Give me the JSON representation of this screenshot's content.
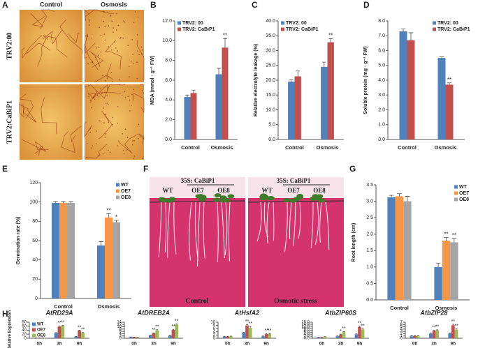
{
  "panel_labels": [
    "A",
    "B",
    "C",
    "D",
    "E",
    "F",
    "G",
    "H"
  ],
  "panel_a": {
    "columns": [
      "Control",
      "Osmosis"
    ],
    "rows": [
      "TRV2:00",
      "TRV2:CaBiP1"
    ]
  },
  "panel_f": {
    "groups": [
      "35S: CaBiP1",
      "35S: CaBiP1"
    ],
    "lines_control": [
      "WT",
      "OE7",
      "OE8"
    ],
    "lines_stress": [
      "WT",
      "OE7",
      "OE8"
    ],
    "conditions": [
      "Control",
      "Osmotic stress"
    ]
  },
  "chart_data": [
    {
      "type": "bar",
      "ylabel": "MDA (mmol · g⁻¹ FW)",
      "categories": [
        "Control",
        "Osmosis"
      ],
      "legend": "top-left",
      "series": [
        {
          "name": "TRV2: 00",
          "color": "#4f81bd",
          "values": [
            4.3,
            6.6
          ],
          "errors": [
            0.2,
            0.6
          ],
          "significance": [
            null,
            null
          ]
        },
        {
          "name": "TRV2: CaBiP1",
          "color": "#c0504d",
          "values": [
            4.7,
            9.3
          ],
          "errors": [
            0.3,
            0.9
          ],
          "significance": [
            null,
            "**"
          ]
        }
      ],
      "ylim": [
        0,
        12
      ],
      "yticks": [
        {
          "value": 0,
          "label": "0.0"
        },
        {
          "value": 2,
          "label": "2.0"
        },
        {
          "value": 4,
          "label": "4.0"
        },
        {
          "value": 6,
          "label": "6.0"
        },
        {
          "value": 8,
          "label": "8.0"
        },
        {
          "value": 10,
          "label": "10.0"
        },
        {
          "value": 12,
          "label": "12.0"
        }
      ]
    },
    {
      "type": "bar",
      "ylabel": "Relative electrolyte leakage (%)",
      "categories": [
        "Control",
        "Osmosis"
      ],
      "legend": "top-left",
      "series": [
        {
          "name": "TRV2: 00",
          "color": "#4f81bd",
          "values": [
            19.5,
            24.5
          ],
          "errors": [
            0.6,
            1.6
          ],
          "significance": [
            null,
            null
          ]
        },
        {
          "name": "TRV2: CaBiP1",
          "color": "#c0504d",
          "values": [
            21.3,
            32.8
          ],
          "errors": [
            1.8,
            1.2
          ],
          "significance": [
            null,
            "**"
          ]
        }
      ],
      "ylim": [
        0,
        40
      ],
      "yticks": [
        {
          "value": 0,
          "label": "0.0"
        },
        {
          "value": 5,
          "label": "5.0"
        },
        {
          "value": 10,
          "label": "10.0"
        },
        {
          "value": 15,
          "label": "15.0"
        },
        {
          "value": 20,
          "label": "20.0"
        },
        {
          "value": 25,
          "label": "25.0"
        },
        {
          "value": 30,
          "label": "30.0"
        },
        {
          "value": 35,
          "label": "35.0"
        },
        {
          "value": 40,
          "label": "40.0"
        }
      ]
    },
    {
      "type": "bar",
      "ylabel": "Soluble protein (mg · g⁻¹ FW)",
      "categories": [
        "Control",
        "Osmosis"
      ],
      "legend": "top-right",
      "series": [
        {
          "name": "TRV2: 00",
          "color": "#4f81bd",
          "values": [
            7.3,
            5.5
          ],
          "errors": [
            0.15,
            0.08
          ],
          "significance": [
            null,
            null
          ]
        },
        {
          "name": "TRV2: CaBiP1",
          "color": "#c0504d",
          "values": [
            6.7,
            3.7
          ],
          "errors": [
            0.5,
            0.12
          ],
          "significance": [
            null,
            "**"
          ]
        }
      ],
      "ylim": [
        0,
        8
      ],
      "yticks": [
        {
          "value": 0,
          "label": "0.0"
        },
        {
          "value": 1,
          "label": "1.0"
        },
        {
          "value": 2,
          "label": "2.0"
        },
        {
          "value": 3,
          "label": "3.0"
        },
        {
          "value": 4,
          "label": "4.0"
        },
        {
          "value": 5,
          "label": "5.0"
        },
        {
          "value": 6,
          "label": "6.0"
        },
        {
          "value": 7,
          "label": "7.0"
        },
        {
          "value": 8,
          "label": "8.0"
        }
      ]
    },
    {
      "type": "bar",
      "ylabel": "Germination rate (%)",
      "categories": [
        "Control",
        "Osmosis"
      ],
      "legend": "top-right",
      "series": [
        {
          "name": "WT",
          "color": "#4f81bd",
          "values": [
            99,
            55
          ],
          "errors": [
            1.5,
            4
          ],
          "significance": [
            null,
            null
          ]
        },
        {
          "name": "OE7",
          "color": "#f79646",
          "values": [
            99,
            84
          ],
          "errors": [
            1.5,
            4
          ],
          "significance": [
            null,
            "**"
          ]
        },
        {
          "name": "OE8",
          "color": "#a5a5a5",
          "values": [
            99,
            79
          ],
          "errors": [
            1.5,
            2
          ],
          "significance": [
            null,
            "*"
          ]
        }
      ],
      "ylim": [
        0,
        120
      ],
      "yticks": [
        0,
        20,
        40,
        60,
        80,
        100,
        120
      ]
    },
    {
      "type": "bar",
      "ylabel": "Root length (cm)",
      "categories": [
        "Control",
        "Osmosis"
      ],
      "legend": "top-right",
      "series": [
        {
          "name": "WT",
          "color": "#4f81bd",
          "values": [
            3.12,
            1.0
          ],
          "errors": [
            0.06,
            0.12
          ],
          "significance": [
            null,
            null
          ]
        },
        {
          "name": "OE7",
          "color": "#f79646",
          "values": [
            3.15,
            1.8
          ],
          "errors": [
            0.08,
            0.1
          ],
          "significance": [
            null,
            "**"
          ]
        },
        {
          "name": "OE8",
          "color": "#a5a5a5",
          "values": [
            3.0,
            1.75
          ],
          "errors": [
            0.15,
            0.12
          ],
          "significance": [
            null,
            "**"
          ]
        }
      ],
      "ylim": [
        0,
        3.5
      ],
      "yticks": [
        {
          "value": 0,
          "label": "0.0"
        },
        0.5,
        {
          "value": 1,
          "label": "1.0"
        },
        1.5,
        {
          "value": 2,
          "label": "2.0"
        },
        2.5,
        {
          "value": 3,
          "label": "3.0"
        },
        3.5
      ]
    },
    {
      "type": "bar",
      "title": "AtRD29A",
      "ylabel": "Relative Expression",
      "categories": [
        "0h",
        "3h",
        "9h"
      ],
      "legend": "top-left",
      "series": [
        {
          "name": "WT",
          "color": "#4f81bd",
          "values": [
            1,
            27,
            8
          ],
          "errors": [
            0.2,
            1.5,
            1
          ],
          "significance": [
            null,
            null,
            null
          ]
        },
        {
          "name": "OE7",
          "color": "#c0504d",
          "values": [
            1,
            58,
            38
          ],
          "errors": [
            0.2,
            4,
            2
          ],
          "significance": [
            null,
            "**",
            "**"
          ]
        },
        {
          "name": "OE8",
          "color": "#9bbb59",
          "values": [
            1,
            62,
            27
          ],
          "errors": [
            0.2,
            3,
            2
          ],
          "significance": [
            null,
            "**",
            "**"
          ]
        }
      ],
      "ylim": [
        0,
        80
      ],
      "yticks": [
        0,
        20,
        40,
        60,
        80
      ]
    },
    {
      "type": "bar",
      "title": "AtDREB2A",
      "categories": [
        "0h",
        "3h",
        "9h"
      ],
      "series": [
        {
          "color": "#4f81bd",
          "values": [
            1,
            2.5,
            2.3
          ],
          "errors": [
            0.1,
            0.3,
            0.3
          ],
          "significance": [
            null,
            null,
            null
          ]
        },
        {
          "color": "#c0504d",
          "values": [
            0.9,
            4.3,
            7.3
          ],
          "errors": [
            0.1,
            0.4,
            0.5
          ],
          "significance": [
            null,
            "**",
            "**"
          ]
        },
        {
          "color": "#9bbb59",
          "values": [
            0.8,
            7,
            12
          ],
          "errors": [
            0.1,
            0.5,
            0.5
          ],
          "significance": [
            null,
            "**",
            "**"
          ]
        }
      ],
      "ylim": [
        0,
        14
      ],
      "yticks": [
        0,
        2,
        4,
        6,
        8,
        10,
        12,
        14
      ]
    },
    {
      "type": "bar",
      "title": "AtHsfA2",
      "categories": [
        "0h",
        "3h",
        "9h"
      ],
      "series": [
        {
          "color": "#4f81bd",
          "values": [
            1,
            3.5,
            1.2
          ],
          "errors": [
            0.2,
            0.3,
            0.2
          ],
          "significance": [
            null,
            null,
            null
          ]
        },
        {
          "color": "#c0504d",
          "values": [
            1,
            8,
            2.6
          ],
          "errors": [
            0.2,
            0.6,
            0.3
          ],
          "significance": [
            null,
            "**",
            "**"
          ]
        },
        {
          "color": "#9bbb59",
          "values": [
            1.1,
            6.5,
            2.7
          ],
          "errors": [
            0.2,
            0.8,
            0.3
          ],
          "significance": [
            null,
            "**",
            "**"
          ]
        }
      ],
      "ylim": [
        0,
        10
      ],
      "yticks": [
        0,
        2,
        4,
        6,
        8,
        10
      ]
    },
    {
      "type": "bar",
      "title": "AtbZIP60S",
      "categories": [
        "0h",
        "3h",
        "9h"
      ],
      "series": [
        {
          "color": "#4f81bd",
          "values": [
            1,
            2,
            4
          ],
          "errors": [
            0.1,
            0.3,
            0.4
          ],
          "significance": [
            null,
            null,
            null
          ]
        },
        {
          "color": "#c0504d",
          "values": [
            0.8,
            3.7,
            11.3
          ],
          "errors": [
            0.1,
            0.4,
            0.8
          ],
          "significance": [
            null,
            "*",
            "**"
          ]
        },
        {
          "color": "#9bbb59",
          "values": [
            1.5,
            6.4,
            8.8
          ],
          "errors": [
            0.1,
            0.4,
            0.5
          ],
          "significance": [
            null,
            "**",
            "**"
          ]
        }
      ],
      "ylim": [
        0,
        16
      ],
      "yticks": [
        {
          "value": 0,
          "label": "0.0"
        },
        {
          "value": 2,
          "label": "2.0"
        },
        {
          "value": 4,
          "label": "4.0"
        },
        {
          "value": 6,
          "label": "6.0"
        },
        {
          "value": 8,
          "label": "8.0"
        },
        {
          "value": 10,
          "label": "10.0"
        },
        {
          "value": 12,
          "label": "12.0"
        },
        {
          "value": 14,
          "label": "14.0"
        },
        {
          "value": 16,
          "label": "16.0"
        }
      ]
    },
    {
      "type": "bar",
      "title": "AtbZIP28",
      "categories": [
        "0h",
        "3h",
        "9h"
      ],
      "series": [
        {
          "color": "#4f81bd",
          "values": [
            1,
            2,
            2.1
          ],
          "errors": [
            0.1,
            0.2,
            0.2
          ],
          "significance": [
            null,
            null,
            null
          ]
        },
        {
          "color": "#c0504d",
          "values": [
            1.1,
            3.2,
            5.7
          ],
          "errors": [
            0.1,
            0.3,
            0.4
          ],
          "significance": [
            null,
            "**",
            "**"
          ]
        },
        {
          "color": "#9bbb59",
          "values": [
            1,
            3.5,
            3.8
          ],
          "errors": [
            0.1,
            0.2,
            0.3
          ],
          "significance": [
            null,
            "**",
            "**"
          ]
        }
      ],
      "ylim": [
        0,
        7
      ],
      "yticks": [
        0,
        1,
        2,
        3,
        4,
        5,
        6,
        7
      ]
    }
  ]
}
